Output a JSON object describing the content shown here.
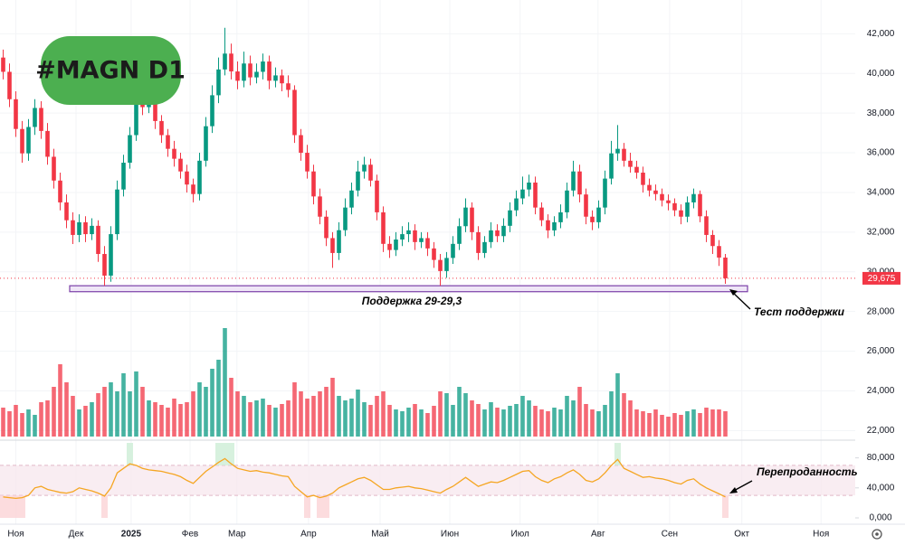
{
  "chart_data": {
    "type": "candlestick",
    "title": "#MAGN D1",
    "xlim": [
      -0.5,
      134.5
    ],
    "xticks": [
      {
        "value": 2,
        "label": "Ноя"
      },
      {
        "value": 11.5,
        "label": "Дек"
      },
      {
        "value": 20.2,
        "label": "2025"
      },
      {
        "value": 29.5,
        "label": "Фев"
      },
      {
        "value": 36.9,
        "label": "Мар"
      },
      {
        "value": 48.2,
        "label": "Апр"
      },
      {
        "value": 59.5,
        "label": "Май"
      },
      {
        "value": 70.5,
        "label": "Июн"
      },
      {
        "value": 81.6,
        "label": "Июл"
      },
      {
        "value": 93.9,
        "label": "Авг"
      },
      {
        "value": 105.2,
        "label": "Сен"
      },
      {
        "value": 116.6,
        "label": "Окт"
      },
      {
        "value": 129.1,
        "label": "Ноя"
      }
    ],
    "ylim": [
      21700,
      43700
    ],
    "yticks": [
      {
        "value": 22000,
        "label": "22,000"
      },
      {
        "value": 24000,
        "label": "24,000"
      },
      {
        "value": 26000,
        "label": "26,000"
      },
      {
        "value": 28000,
        "label": "28,000"
      },
      {
        "value": 30000,
        "label": "30,000"
      },
      {
        "value": 32000,
        "label": "32,000"
      },
      {
        "value": 34000,
        "label": "34,000"
      },
      {
        "value": 36000,
        "label": "36,000"
      },
      {
        "value": 38000,
        "label": "38,000"
      },
      {
        "value": 40000,
        "label": "40,000"
      },
      {
        "value": 42000,
        "label": "42,000"
      }
    ],
    "grid": true,
    "colors": {
      "up": "#089981",
      "down": "#f23645",
      "rsi": "#f5a623"
    },
    "open": [
      40800,
      40080,
      38700,
      37200,
      35970,
      37300,
      38260,
      37100,
      35800,
      34600,
      33500,
      32600,
      31860,
      32500,
      31900,
      32320,
      30900,
      29810,
      31900,
      34150,
      35500,
      36890,
      39170,
      38300,
      38710,
      37600,
      36890,
      36200,
      35700,
      35060,
      34400,
      33920,
      35600,
      37340,
      38900,
      40200,
      41000,
      40100,
      39630,
      40500,
      39800,
      40080,
      40600,
      39630,
      39900,
      39500,
      39170,
      36890,
      36000,
      35060,
      33800,
      32780,
      31700,
      30950,
      32100,
      33240,
      34100,
      35060,
      35400,
      34600,
      33000,
      31410,
      31100,
      31630,
      31900,
      32090,
      31500,
      31700,
      31180,
      30600,
      30040,
      30700,
      31410,
      32300,
      33240,
      32000,
      30950,
      31500,
      32090,
      31800,
      32320,
      33100,
      33700,
      34150,
      34500,
      33240,
      32600,
      32090,
      32500,
      33000,
      34100,
      35060,
      33900,
      32780,
      32500,
      33240,
      34700,
      35970,
      36200,
      35600,
      35290,
      35000,
      34380,
      34100,
      33920,
      33600,
      33460,
      33100,
      32780,
      33500,
      33920,
      32800,
      31860,
      31300,
      30720
    ],
    "high": [
      41200,
      40500,
      39100,
      37600,
      37700,
      38700,
      38600,
      37500,
      36200,
      35000,
      33900,
      33000,
      32900,
      32800,
      32700,
      32600,
      31300,
      32300,
      34600,
      35900,
      37300,
      39800,
      39600,
      39200,
      39000,
      37900,
      37200,
      36600,
      36000,
      35400,
      34700,
      36000,
      37800,
      39400,
      40800,
      42300,
      41500,
      40600,
      41100,
      40900,
      40500,
      41000,
      40900,
      40300,
      40200,
      39900,
      39400,
      37200,
      36400,
      35400,
      34200,
      33100,
      32000,
      32500,
      33700,
      34500,
      35600,
      35800,
      35700,
      34900,
      33300,
      31800,
      32000,
      32300,
      32500,
      32400,
      32000,
      32000,
      31500,
      30900,
      31000,
      31800,
      32700,
      33700,
      33500,
      32300,
      31800,
      32500,
      32400,
      32700,
      33500,
      34100,
      34800,
      34900,
      34800,
      33500,
      32900,
      32800,
      33400,
      34500,
      35600,
      35400,
      34200,
      33100,
      33600,
      35100,
      36600,
      37400,
      36500,
      36000,
      35600,
      35300,
      34700,
      34400,
      34200,
      33900,
      33700,
      33400,
      33800,
      34200,
      34100,
      33100,
      32100,
      31600,
      30900
    ],
    "low": [
      39700,
      38300,
      36800,
      35500,
      35600,
      36900,
      36700,
      35400,
      34200,
      33100,
      32200,
      31400,
      31500,
      31500,
      31600,
      30500,
      29300,
      29500,
      31600,
      33800,
      35200,
      36600,
      37900,
      38000,
      37200,
      36500,
      35800,
      35300,
      34700,
      34000,
      33500,
      33600,
      35300,
      37000,
      38500,
      39900,
      39700,
      39200,
      39300,
      39400,
      39500,
      39700,
      39200,
      39300,
      39100,
      38800,
      36500,
      35600,
      34700,
      33400,
      32400,
      31300,
      30200,
      30600,
      31800,
      32900,
      33800,
      34700,
      34300,
      32600,
      31000,
      30700,
      30800,
      31300,
      31500,
      31100,
      31200,
      30800,
      30200,
      29300,
      29700,
      30400,
      31100,
      32000,
      31600,
      30600,
      30700,
      31200,
      31500,
      31500,
      32000,
      32800,
      33400,
      33800,
      32900,
      32300,
      31700,
      31800,
      32200,
      32700,
      33800,
      33500,
      32400,
      32100,
      32200,
      32900,
      34400,
      35600,
      35300,
      35000,
      34700,
      34000,
      33800,
      33600,
      33300,
      33100,
      32800,
      32400,
      32500,
      33200,
      32500,
      31500,
      30900,
      30300,
      29400
    ],
    "close": [
      40080,
      38700,
      37200,
      35970,
      37300,
      38260,
      37100,
      35800,
      34600,
      33500,
      32600,
      31860,
      32500,
      31900,
      32320,
      30900,
      29810,
      31900,
      34150,
      35500,
      36890,
      39170,
      38300,
      38710,
      37600,
      36890,
      36200,
      35700,
      35060,
      34400,
      33920,
      35600,
      37340,
      38900,
      40200,
      41000,
      40100,
      39630,
      40500,
      39800,
      40080,
      40600,
      39630,
      39900,
      39500,
      39170,
      36890,
      36000,
      35060,
      33800,
      32780,
      31700,
      30950,
      32100,
      33240,
      34100,
      35060,
      35400,
      34600,
      33000,
      31410,
      31100,
      31630,
      31900,
      32090,
      31500,
      31700,
      31180,
      30600,
      30040,
      30700,
      31410,
      32300,
      33240,
      32000,
      30950,
      31500,
      32090,
      31800,
      32320,
      33100,
      33700,
      34150,
      34500,
      33240,
      32600,
      32090,
      32500,
      33000,
      34100,
      35060,
      33900,
      32780,
      32500,
      33240,
      34700,
      35970,
      36200,
      35600,
      35290,
      35000,
      34380,
      34100,
      33920,
      33600,
      33460,
      33100,
      32780,
      33500,
      33920,
      32800,
      31860,
      31300,
      30720,
      29675
    ],
    "volume": [
      3.2,
      2.8,
      3.5,
      2.6,
      3.0,
      2.4,
      3.8,
      4.0,
      5.5,
      8.0,
      6.0,
      4.5,
      3.0,
      3.4,
      3.8,
      4.8,
      5.5,
      6.0,
      5.0,
      7.0,
      5.0,
      7.2,
      5.5,
      4.0,
      3.8,
      3.5,
      3.2,
      4.2,
      3.6,
      3.8,
      5.0,
      6.0,
      5.5,
      7.5,
      8.5,
      12.0,
      6.5,
      5.0,
      4.5,
      3.8,
      4.0,
      4.2,
      3.5,
      3.2,
      3.6,
      4.0,
      6.0,
      5.0,
      4.2,
      4.5,
      5.0,
      5.5,
      6.5,
      4.5,
      4.0,
      4.2,
      5.2,
      3.8,
      3.5,
      4.5,
      5.0,
      3.5,
      3.0,
      2.8,
      3.2,
      3.6,
      3.0,
      2.6,
      3.4,
      5.0,
      4.8,
      3.5,
      5.5,
      4.8,
      4.0,
      3.6,
      3.0,
      3.8,
      3.2,
      3.0,
      3.4,
      3.6,
      4.5,
      4.0,
      3.4,
      3.0,
      2.8,
      3.2,
      3.0,
      4.5,
      4.0,
      5.5,
      3.6,
      3.0,
      2.8,
      3.5,
      5.0,
      7.0,
      4.8,
      4.0,
      3.0,
      2.8,
      2.6,
      3.0,
      2.4,
      2.2,
      2.6,
      2.4,
      2.8,
      3.0,
      2.6,
      3.2,
      3.0,
      3.0,
      2.8
    ],
    "last_price": {
      "value": 29675,
      "label": "29,675"
    },
    "support": {
      "low": 29000,
      "high": 29300,
      "label": "Поддержка 29-29,3"
    },
    "annotations": [
      "Тест поддержки",
      "Перепроданность"
    ],
    "rsi": {
      "ylim": [
        0,
        100
      ],
      "yticks": [
        {
          "value": 80,
          "label": "80,000"
        },
        {
          "value": 40,
          "label": "40,000"
        },
        {
          "value": 0,
          "label": "0,000"
        }
      ],
      "band": [
        30,
        70
      ],
      "values": [
        28,
        27,
        26,
        27,
        30,
        40,
        42,
        38,
        36,
        34,
        33,
        35,
        40,
        38,
        36,
        33,
        29,
        40,
        60,
        66,
        72,
        70,
        66,
        64,
        63,
        62,
        60,
        58,
        55,
        50,
        46,
        54,
        62,
        68,
        74,
        79,
        72,
        66,
        64,
        62,
        63,
        61,
        60,
        58,
        56,
        55,
        42,
        35,
        28,
        30,
        27,
        29,
        33,
        40,
        44,
        48,
        52,
        54,
        50,
        44,
        38,
        38,
        40,
        41,
        42,
        40,
        39,
        37,
        35,
        33,
        38,
        42,
        48,
        54,
        48,
        42,
        45,
        48,
        47,
        50,
        54,
        58,
        62,
        63,
        55,
        50,
        47,
        52,
        55,
        60,
        64,
        58,
        50,
        48,
        52,
        60,
        70,
        78,
        66,
        62,
        58,
        54,
        55,
        53,
        52,
        50,
        47,
        45,
        50,
        52,
        45,
        40,
        36,
        32,
        28
      ]
    }
  }
}
